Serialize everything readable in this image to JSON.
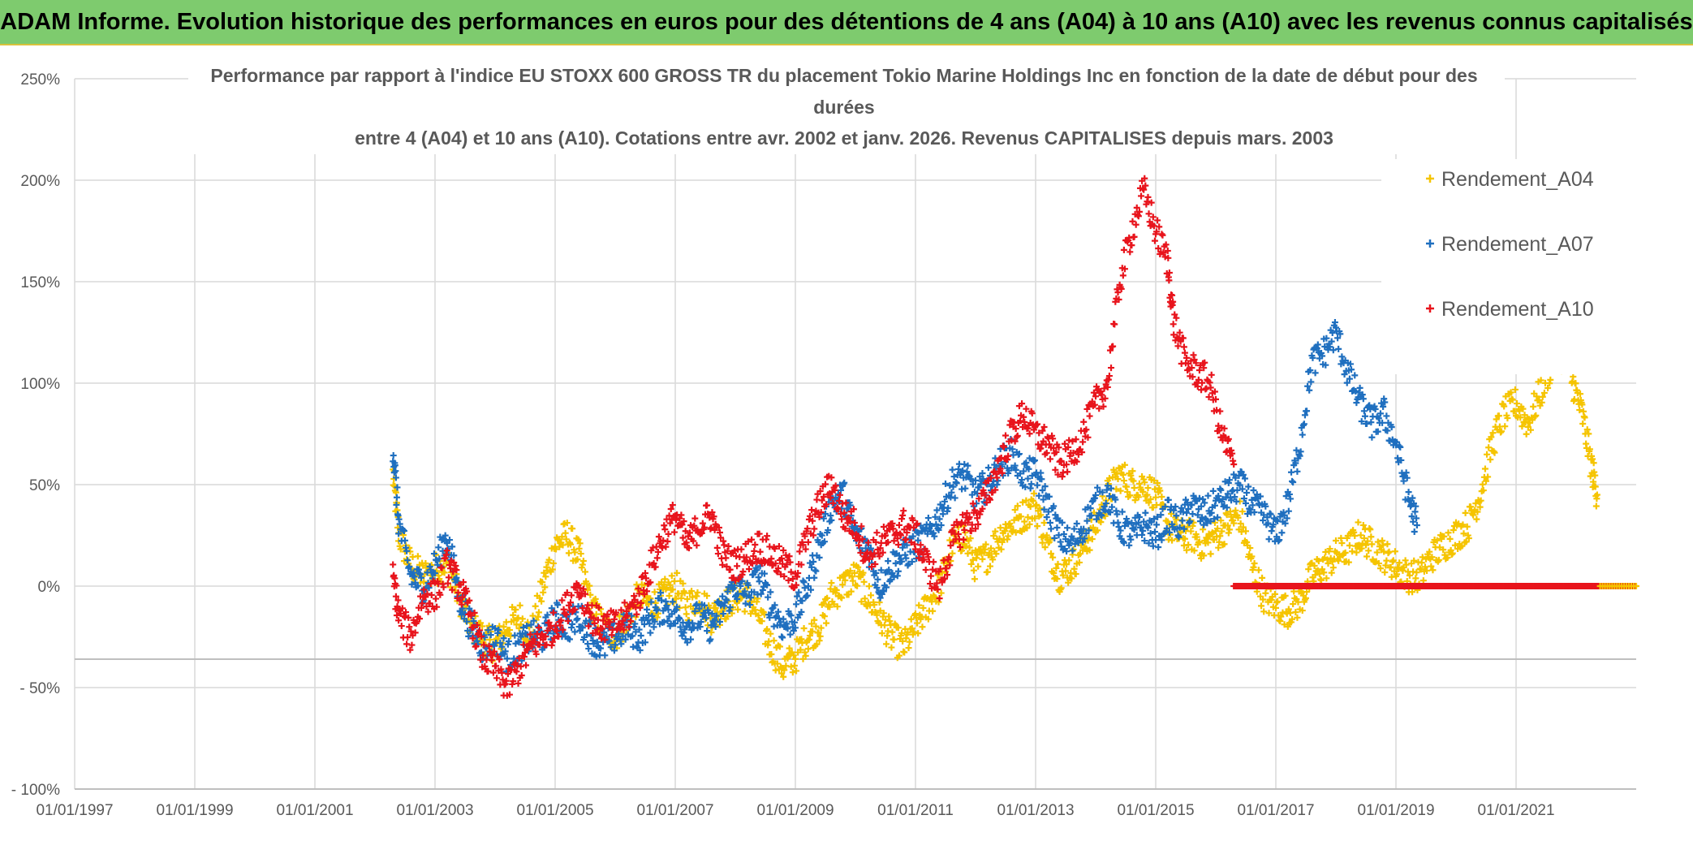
{
  "banner": {
    "title": "ADAM Informe. Evolution historique des performances en euros pour des détentions de 4 ans (A04) à 10 ans (A10) avec les revenus connus capitalisés"
  },
  "colors": {
    "banner_bg": "#7ecb6e",
    "grid": "#d9d9d9",
    "text": "#595959",
    "A04": "#f5c400",
    "A07": "#1f6fbf",
    "A10": "#e8141c"
  },
  "chart_data": {
    "type": "scatter",
    "marker": "+",
    "title_lines": [
      "Performance par rapport à l'indice EU STOXX 600 GROSS TR  du placement Tokio Marine Holdings Inc en fonction de la date de début pour des",
      "durées",
      "entre 4 (A04) et 10 ans (A10). Cotations entre avr. 2002 et janv. 2026. Revenus CAPITALISES depuis mars. 2003"
    ],
    "x_range": [
      1997.0,
      2023.0
    ],
    "y_range": [
      -100,
      250
    ],
    "y_ticks": [
      -100,
      -50,
      0,
      50,
      100,
      150,
      200,
      250
    ],
    "y_tick_labels": [
      "- 100%",
      "- 50%",
      "0%",
      "50%",
      "100%",
      "150%",
      "200%",
      "250%"
    ],
    "x_ticks": [
      1997,
      1999,
      2001,
      2003,
      2005,
      2007,
      2009,
      2011,
      2013,
      2015,
      2017,
      2019,
      2021
    ],
    "x_tick_labels": [
      "01/01/1997",
      "01/01/1999",
      "01/01/2001",
      "01/01/2003",
      "01/01/2005",
      "01/01/2007",
      "01/01/2009",
      "01/01/2011",
      "01/01/2013",
      "01/01/2015",
      "01/01/2017",
      "01/01/2019",
      "01/01/2021"
    ],
    "legend_position": "top-right",
    "series": [
      {
        "name": "Rendement_A04",
        "key": "A04",
        "points": [
          [
            2002.3,
            55
          ],
          [
            2002.4,
            25
          ],
          [
            2002.6,
            10
          ],
          [
            2002.8,
            5
          ],
          [
            2003.0,
            8
          ],
          [
            2003.2,
            12
          ],
          [
            2003.4,
            -5
          ],
          [
            2003.6,
            -20
          ],
          [
            2003.8,
            -25
          ],
          [
            2004.0,
            -30
          ],
          [
            2004.2,
            -20
          ],
          [
            2004.4,
            -15
          ],
          [
            2004.6,
            -25
          ],
          [
            2004.8,
            0
          ],
          [
            2005.0,
            20
          ],
          [
            2005.2,
            25
          ],
          [
            2005.4,
            15
          ],
          [
            2005.6,
            -10
          ],
          [
            2005.8,
            -20
          ],
          [
            2006.0,
            -25
          ],
          [
            2006.2,
            -15
          ],
          [
            2006.4,
            -5
          ],
          [
            2006.6,
            -10
          ],
          [
            2006.8,
            -5
          ],
          [
            2007.0,
            0
          ],
          [
            2007.2,
            -10
          ],
          [
            2007.4,
            -5
          ],
          [
            2007.6,
            -15
          ],
          [
            2007.8,
            -10
          ],
          [
            2008.0,
            -5
          ],
          [
            2008.2,
            -5
          ],
          [
            2008.4,
            -15
          ],
          [
            2008.6,
            -30
          ],
          [
            2008.8,
            -40
          ],
          [
            2009.0,
            -35
          ],
          [
            2009.2,
            -25
          ],
          [
            2009.4,
            -20
          ],
          [
            2009.6,
            -5
          ],
          [
            2009.8,
            0
          ],
          [
            2010.0,
            5
          ],
          [
            2010.2,
            -5
          ],
          [
            2010.4,
            -15
          ],
          [
            2010.6,
            -25
          ],
          [
            2010.8,
            -30
          ],
          [
            2011.0,
            -20
          ],
          [
            2011.2,
            -10
          ],
          [
            2011.4,
            0
          ],
          [
            2011.6,
            20
          ],
          [
            2011.8,
            25
          ],
          [
            2012.0,
            10
          ],
          [
            2012.2,
            15
          ],
          [
            2012.4,
            25
          ],
          [
            2012.6,
            30
          ],
          [
            2012.8,
            35
          ],
          [
            2013.0,
            40
          ],
          [
            2013.2,
            20
          ],
          [
            2013.4,
            5
          ],
          [
            2013.6,
            10
          ],
          [
            2013.8,
            20
          ],
          [
            2014.0,
            30
          ],
          [
            2014.2,
            45
          ],
          [
            2014.4,
            55
          ],
          [
            2014.6,
            50
          ],
          [
            2014.8,
            50
          ],
          [
            2015.0,
            45
          ],
          [
            2015.2,
            30
          ],
          [
            2015.4,
            25
          ],
          [
            2015.6,
            25
          ],
          [
            2015.8,
            20
          ],
          [
            2016.0,
            25
          ],
          [
            2016.2,
            30
          ],
          [
            2016.4,
            35
          ],
          [
            2016.6,
            10
          ],
          [
            2016.8,
            -5
          ],
          [
            2017.0,
            -10
          ],
          [
            2017.2,
            -12
          ],
          [
            2017.4,
            -8
          ],
          [
            2017.6,
            5
          ],
          [
            2017.8,
            10
          ],
          [
            2018.0,
            15
          ],
          [
            2018.2,
            18
          ],
          [
            2018.4,
            25
          ],
          [
            2018.6,
            20
          ],
          [
            2018.8,
            15
          ],
          [
            2019.0,
            10
          ],
          [
            2019.2,
            5
          ],
          [
            2019.4,
            5
          ],
          [
            2019.6,
            15
          ],
          [
            2019.8,
            20
          ],
          [
            2020.0,
            25
          ],
          [
            2020.2,
            30
          ],
          [
            2020.4,
            45
          ],
          [
            2020.6,
            70
          ],
          [
            2020.8,
            85
          ],
          [
            2021.0,
            90
          ],
          [
            2021.2,
            80
          ],
          [
            2021.4,
            95
          ],
          [
            2021.6,
            110
          ],
          [
            2021.8,
            115
          ],
          [
            2021.95,
            100
          ],
          [
            2022.1,
            85
          ],
          [
            2022.25,
            60
          ],
          [
            2022.35,
            45
          ]
        ]
      },
      {
        "name": "Rendement_A07",
        "key": "A07",
        "points": [
          [
            2002.3,
            68
          ],
          [
            2002.4,
            30
          ],
          [
            2002.6,
            5
          ],
          [
            2002.8,
            0
          ],
          [
            2003.0,
            10
          ],
          [
            2003.2,
            25
          ],
          [
            2003.4,
            -5
          ],
          [
            2003.6,
            -20
          ],
          [
            2003.8,
            -30
          ],
          [
            2004.0,
            -25
          ],
          [
            2004.2,
            -35
          ],
          [
            2004.4,
            -30
          ],
          [
            2004.6,
            -25
          ],
          [
            2004.8,
            -25
          ],
          [
            2005.0,
            -15
          ],
          [
            2005.2,
            -20
          ],
          [
            2005.4,
            -15
          ],
          [
            2005.6,
            -25
          ],
          [
            2005.8,
            -30
          ],
          [
            2006.0,
            -25
          ],
          [
            2006.2,
            -20
          ],
          [
            2006.4,
            -25
          ],
          [
            2006.6,
            -15
          ],
          [
            2006.8,
            -10
          ],
          [
            2007.0,
            -15
          ],
          [
            2007.2,
            -20
          ],
          [
            2007.4,
            -15
          ],
          [
            2007.6,
            -20
          ],
          [
            2007.8,
            -10
          ],
          [
            2008.0,
            0
          ],
          [
            2008.2,
            -5
          ],
          [
            2008.4,
            5
          ],
          [
            2008.6,
            -10
          ],
          [
            2008.8,
            -20
          ],
          [
            2009.0,
            -15
          ],
          [
            2009.2,
            0
          ],
          [
            2009.4,
            20
          ],
          [
            2009.6,
            40
          ],
          [
            2009.8,
            45
          ],
          [
            2010.0,
            25
          ],
          [
            2010.2,
            20
          ],
          [
            2010.4,
            0
          ],
          [
            2010.6,
            10
          ],
          [
            2010.8,
            15
          ],
          [
            2011.0,
            20
          ],
          [
            2011.2,
            25
          ],
          [
            2011.4,
            35
          ],
          [
            2011.6,
            50
          ],
          [
            2011.8,
            55
          ],
          [
            2012.0,
            45
          ],
          [
            2012.2,
            50
          ],
          [
            2012.4,
            60
          ],
          [
            2012.6,
            65
          ],
          [
            2012.8,
            55
          ],
          [
            2013.0,
            55
          ],
          [
            2013.2,
            40
          ],
          [
            2013.4,
            25
          ],
          [
            2013.6,
            20
          ],
          [
            2013.8,
            30
          ],
          [
            2014.0,
            40
          ],
          [
            2014.2,
            45
          ],
          [
            2014.4,
            30
          ],
          [
            2014.6,
            25
          ],
          [
            2014.8,
            30
          ],
          [
            2015.0,
            25
          ],
          [
            2015.2,
            35
          ],
          [
            2015.4,
            30
          ],
          [
            2015.6,
            40
          ],
          [
            2015.8,
            35
          ],
          [
            2016.0,
            40
          ],
          [
            2016.2,
            45
          ],
          [
            2016.4,
            50
          ],
          [
            2016.6,
            40
          ],
          [
            2016.8,
            35
          ],
          [
            2017.0,
            25
          ],
          [
            2017.2,
            40
          ],
          [
            2017.4,
            70
          ],
          [
            2017.6,
            110
          ],
          [
            2017.8,
            115
          ],
          [
            2018.0,
            125
          ],
          [
            2018.2,
            105
          ],
          [
            2018.4,
            90
          ],
          [
            2018.6,
            80
          ],
          [
            2018.8,
            85
          ],
          [
            2019.0,
            70
          ],
          [
            2019.2,
            45
          ],
          [
            2019.35,
            30
          ]
        ]
      },
      {
        "name": "Rendement_A10",
        "key": "A10",
        "points": [
          [
            2002.3,
            5
          ],
          [
            2002.4,
            -15
          ],
          [
            2002.6,
            -25
          ],
          [
            2002.8,
            -5
          ],
          [
            2003.0,
            -5
          ],
          [
            2003.2,
            10
          ],
          [
            2003.4,
            0
          ],
          [
            2003.6,
            -15
          ],
          [
            2003.8,
            -35
          ],
          [
            2004.0,
            -40
          ],
          [
            2004.2,
            -50
          ],
          [
            2004.4,
            -40
          ],
          [
            2004.6,
            -30
          ],
          [
            2004.8,
            -25
          ],
          [
            2005.0,
            -20
          ],
          [
            2005.2,
            -10
          ],
          [
            2005.4,
            0
          ],
          [
            2005.6,
            -15
          ],
          [
            2005.8,
            -20
          ],
          [
            2006.0,
            -20
          ],
          [
            2006.2,
            -15
          ],
          [
            2006.4,
            -5
          ],
          [
            2006.6,
            10
          ],
          [
            2006.8,
            25
          ],
          [
            2007.0,
            35
          ],
          [
            2007.2,
            20
          ],
          [
            2007.4,
            30
          ],
          [
            2007.6,
            35
          ],
          [
            2007.8,
            15
          ],
          [
            2008.0,
            10
          ],
          [
            2008.2,
            15
          ],
          [
            2008.4,
            20
          ],
          [
            2008.6,
            15
          ],
          [
            2008.8,
            10
          ],
          [
            2009.0,
            5
          ],
          [
            2009.2,
            25
          ],
          [
            2009.4,
            40
          ],
          [
            2009.6,
            50
          ],
          [
            2009.8,
            35
          ],
          [
            2010.0,
            30
          ],
          [
            2010.2,
            15
          ],
          [
            2010.4,
            20
          ],
          [
            2010.6,
            25
          ],
          [
            2010.8,
            30
          ],
          [
            2011.0,
            25
          ],
          [
            2011.2,
            10
          ],
          [
            2011.4,
            0
          ],
          [
            2011.6,
            20
          ],
          [
            2011.8,
            30
          ],
          [
            2012.0,
            35
          ],
          [
            2012.2,
            45
          ],
          [
            2012.4,
            60
          ],
          [
            2012.6,
            75
          ],
          [
            2012.8,
            85
          ],
          [
            2013.0,
            75
          ],
          [
            2013.2,
            70
          ],
          [
            2013.4,
            60
          ],
          [
            2013.6,
            65
          ],
          [
            2013.8,
            75
          ],
          [
            2014.0,
            90
          ],
          [
            2014.2,
            100
          ],
          [
            2014.4,
            150
          ],
          [
            2014.6,
            175
          ],
          [
            2014.8,
            195
          ],
          [
            2015.0,
            175
          ],
          [
            2015.2,
            160
          ],
          [
            2015.3,
            130
          ],
          [
            2015.5,
            110
          ],
          [
            2015.7,
            105
          ],
          [
            2015.9,
            100
          ],
          [
            2016.1,
            75
          ],
          [
            2016.3,
            60
          ]
        ]
      }
    ],
    "a10_zero_segment": {
      "x_start": 2016.3,
      "x_end": 2023.0,
      "value": 0
    },
    "a04_zero_tail": {
      "x_start": 2022.4,
      "x_end": 2023.0,
      "value": 0
    }
  }
}
